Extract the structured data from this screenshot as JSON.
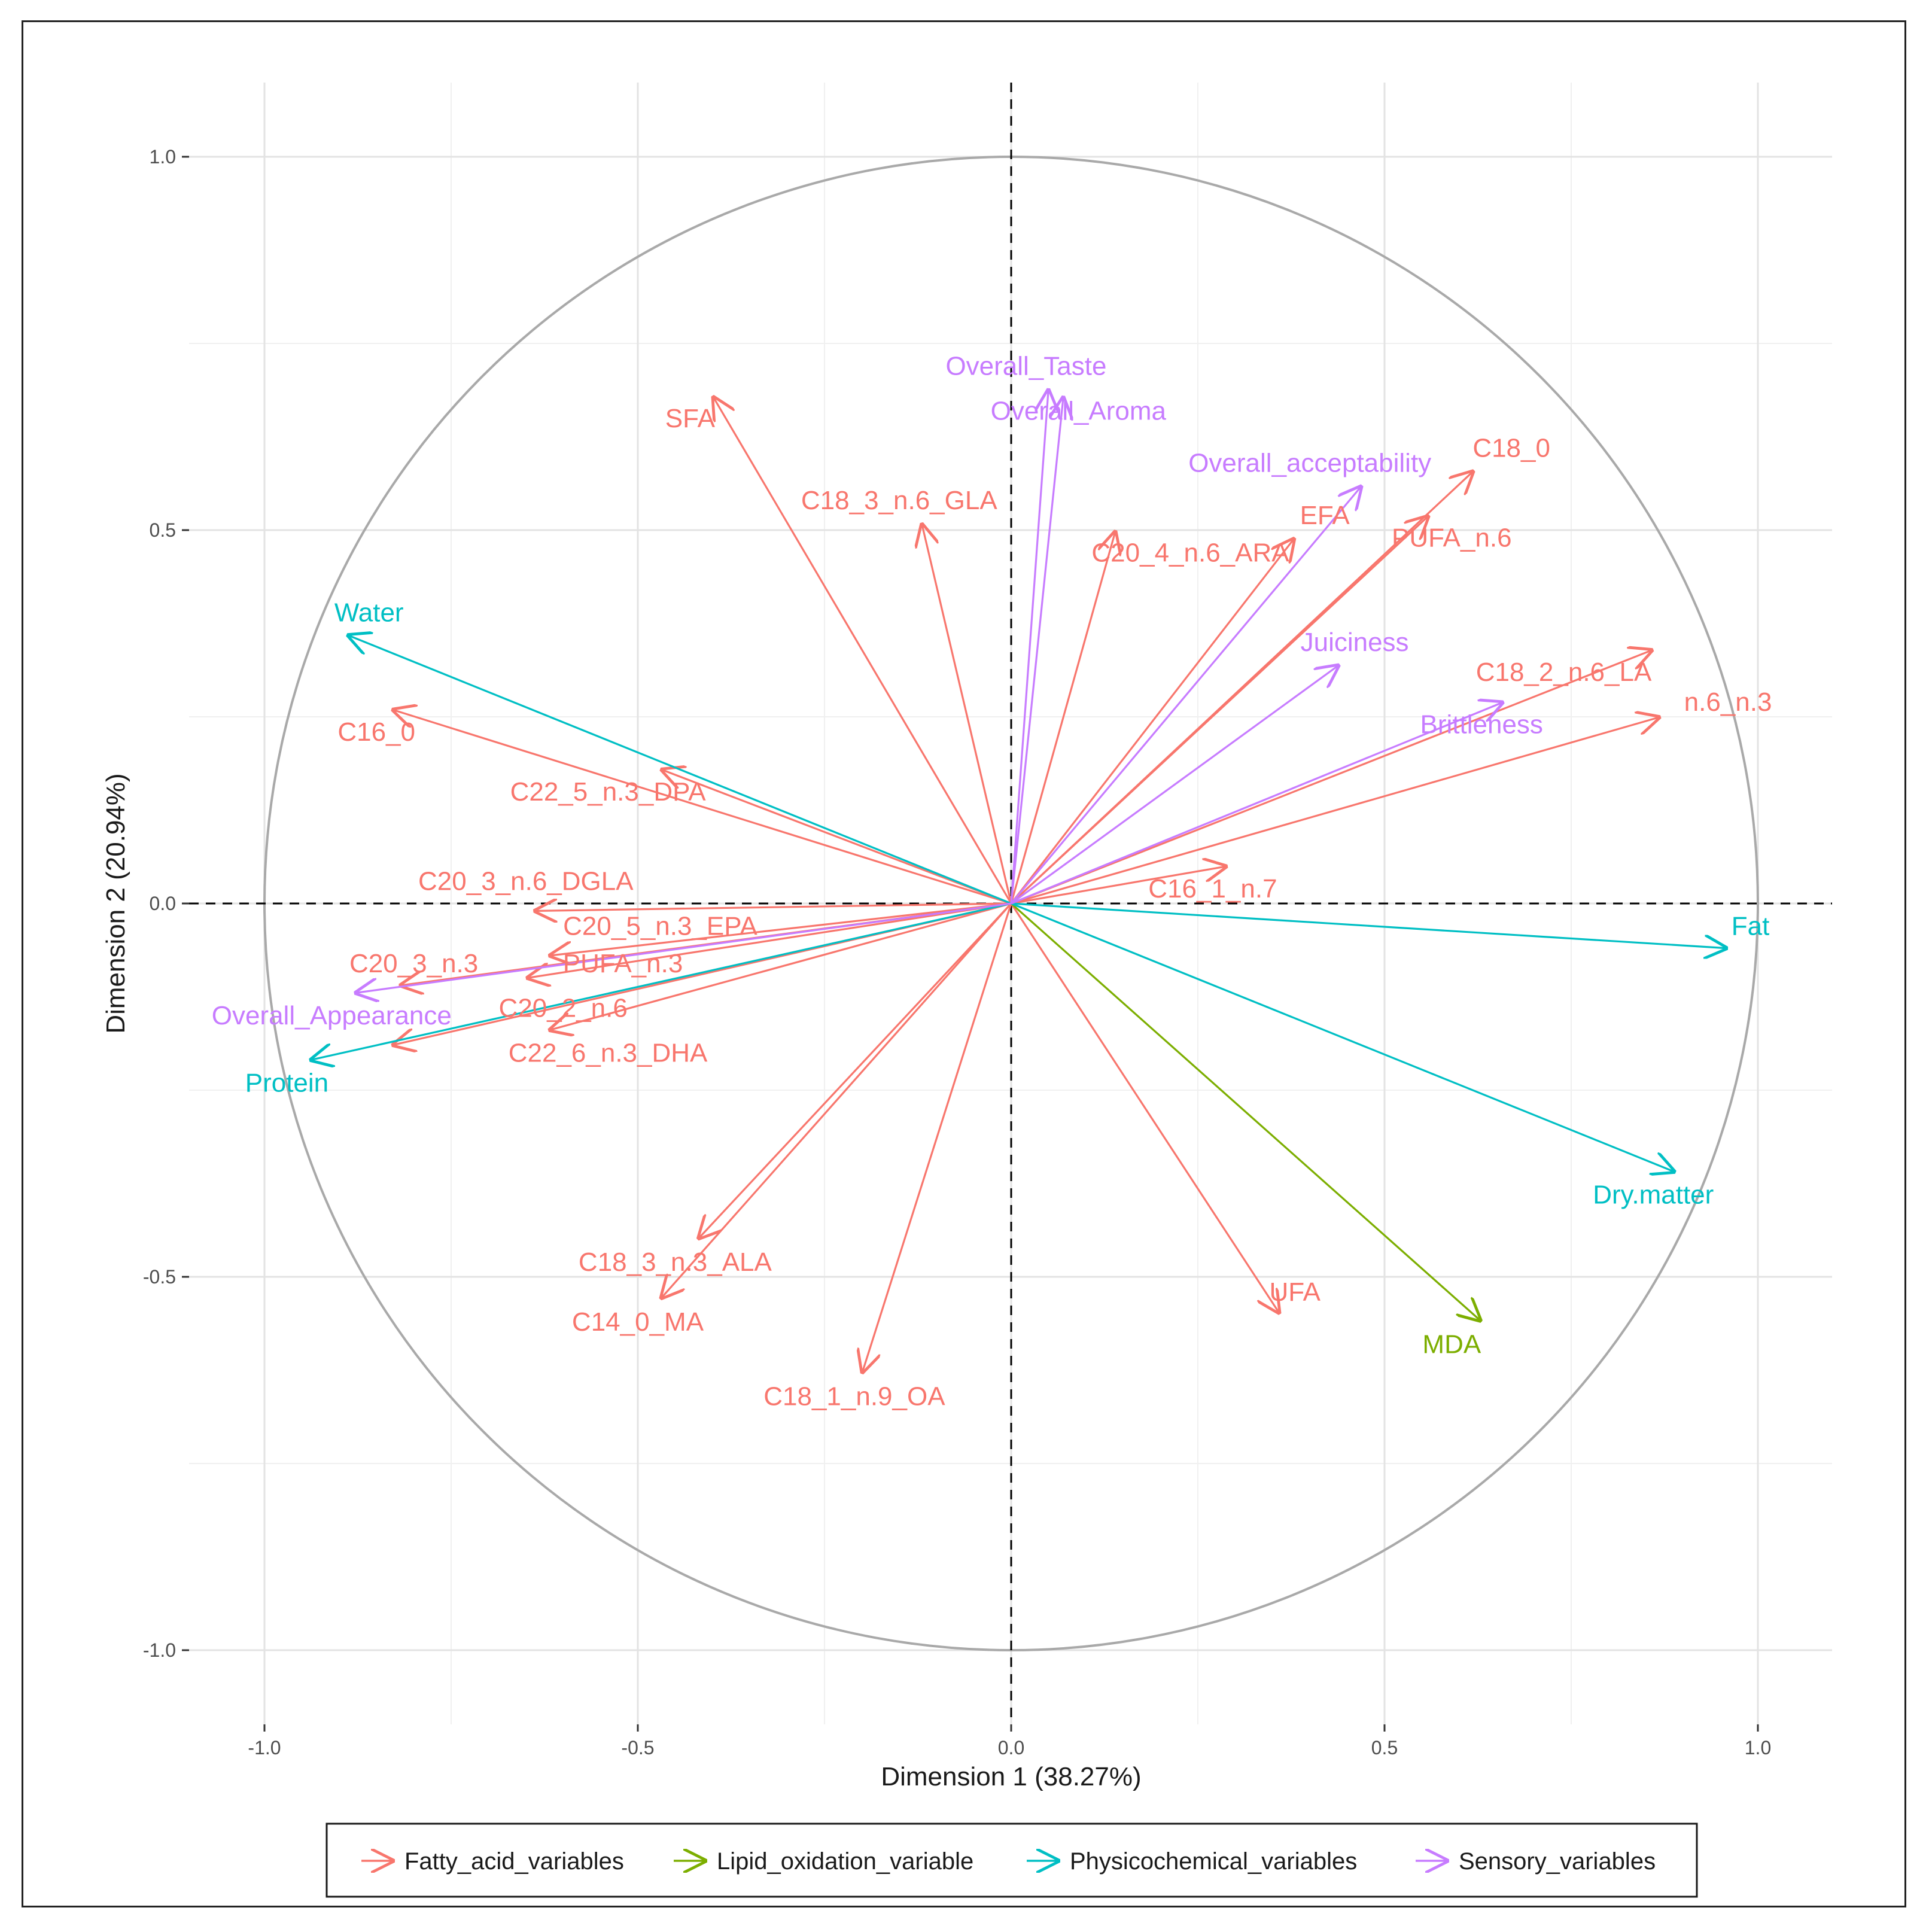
{
  "chart_data": {
    "type": "biplot",
    "title": "",
    "xlabel": "Dimension 1 (38.27%)",
    "ylabel": "Dimension 2 (20.94%)",
    "xlim": [
      -1.1,
      1.1
    ],
    "ylim": [
      -1.1,
      1.1
    ],
    "xticks": [
      -1.0,
      -0.5,
      0.0,
      0.5,
      1.0
    ],
    "yticks": [
      -1.0,
      -0.5,
      0.0,
      0.5,
      1.0
    ],
    "xtick_labels": [
      "-1.0",
      "-0.5",
      "0.0",
      "0.5",
      "1.0"
    ],
    "ytick_labels": [
      "-1.0",
      "-0.5",
      "0.0",
      "0.5",
      "1.0"
    ],
    "grid": true,
    "unit_circle": true,
    "reference_lines": "dashed lines at x=0 and y=0",
    "legend_position": "bottom",
    "groups": [
      {
        "name": "Fatty_acid_variables",
        "color": "#F8766D"
      },
      {
        "name": "Lipid_oxidation_variable",
        "color": "#7CAE00"
      },
      {
        "name": "Physicochemical_variables",
        "color": "#00BFC4"
      },
      {
        "name": "Sensory_variables",
        "color": "#C77CFF"
      }
    ],
    "variables": [
      {
        "name": "SFA",
        "group": "Fatty_acid_variables",
        "x": -0.4,
        "y": 0.68,
        "lx": -0.43,
        "ly": 0.65
      },
      {
        "name": "C18_3_n.6_GLA",
        "group": "Fatty_acid_variables",
        "x": -0.12,
        "y": 0.51,
        "lx": -0.15,
        "ly": 0.54
      },
      {
        "name": "C20_4_n.6_ARA",
        "group": "Fatty_acid_variables",
        "x": 0.14,
        "y": 0.5,
        "lx": 0.24,
        "ly": 0.47
      },
      {
        "name": "EFA",
        "group": "Fatty_acid_variables",
        "x": 0.38,
        "y": 0.49,
        "lx": 0.42,
        "ly": 0.52
      },
      {
        "name": "C18_0",
        "group": "Fatty_acid_variables",
        "x": 0.62,
        "y": 0.58,
        "lx": 0.67,
        "ly": 0.61
      },
      {
        "name": "PUFA_n.6",
        "group": "Fatty_acid_variables",
        "x": 0.56,
        "y": 0.52,
        "lx": 0.59,
        "ly": 0.49
      },
      {
        "name": "C18_2_n.6_LA",
        "group": "Fatty_acid_variables",
        "x": 0.86,
        "y": 0.34,
        "lx": 0.74,
        "ly": 0.31
      },
      {
        "name": "n.6_n.3",
        "group": "Fatty_acid_variables",
        "x": 0.87,
        "y": 0.25,
        "lx": 0.96,
        "ly": 0.27
      },
      {
        "name": "C16_1_n.7",
        "group": "Fatty_acid_variables",
        "x": 0.29,
        "y": 0.05,
        "lx": 0.27,
        "ly": 0.02
      },
      {
        "name": "UFA",
        "group": "Fatty_acid_variables",
        "x": 0.36,
        "y": -0.55,
        "lx": 0.38,
        "ly": -0.52
      },
      {
        "name": "C18_1_n.9_OA",
        "group": "Fatty_acid_variables",
        "x": -0.2,
        "y": -0.63,
        "lx": -0.21,
        "ly": -0.66
      },
      {
        "name": "C14_0_MA",
        "group": "Fatty_acid_variables",
        "x": -0.47,
        "y": -0.53,
        "lx": -0.5,
        "ly": -0.56
      },
      {
        "name": "C18_3_n.3_ALA",
        "group": "Fatty_acid_variables",
        "x": -0.42,
        "y": -0.45,
        "lx": -0.45,
        "ly": -0.48
      },
      {
        "name": "C16_0",
        "group": "Fatty_acid_variables",
        "x": -0.83,
        "y": 0.26,
        "lx": -0.85,
        "ly": 0.23
      },
      {
        "name": "C22_5_n.3_DPA",
        "group": "Fatty_acid_variables",
        "x": -0.47,
        "y": 0.18,
        "lx": -0.54,
        "ly": 0.15
      },
      {
        "name": "C20_3_n.6_DGLA",
        "group": "Fatty_acid_variables",
        "x": -0.64,
        "y": -0.01,
        "lx": -0.65,
        "ly": 0.03
      },
      {
        "name": "C20_5_n.3_EPA",
        "group": "Fatty_acid_variables",
        "x": -0.62,
        "y": -0.07,
        "lx": -0.47,
        "ly": -0.03
      },
      {
        "name": "PUFA_n.3",
        "group": "Fatty_acid_variables",
        "x": -0.65,
        "y": -0.1,
        "lx": -0.52,
        "ly": -0.08
      },
      {
        "name": "C20_3_n.3",
        "group": "Fatty_acid_variables",
        "x": -0.82,
        "y": -0.11,
        "lx": -0.8,
        "ly": -0.08
      },
      {
        "name": "C20_2_n.6",
        "group": "Fatty_acid_variables",
        "x": -0.62,
        "y": -0.17,
        "lx": -0.6,
        "ly": -0.14
      },
      {
        "name": "C22_6_n.3_DHA",
        "group": "Fatty_acid_variables",
        "x": -0.83,
        "y": -0.19,
        "lx": -0.54,
        "ly": -0.2
      },
      {
        "name": "MDA",
        "group": "Lipid_oxidation_variable",
        "x": 0.63,
        "y": -0.56,
        "lx": 0.59,
        "ly": -0.59
      },
      {
        "name": "Water",
        "group": "Physicochemical_variables",
        "x": -0.89,
        "y": 0.36,
        "lx": -0.86,
        "ly": 0.39
      },
      {
        "name": "Protein",
        "group": "Physicochemical_variables",
        "x": -0.94,
        "y": -0.21,
        "lx": -0.97,
        "ly": -0.24
      },
      {
        "name": "Fat",
        "group": "Physicochemical_variables",
        "x": 0.96,
        "y": -0.06,
        "lx": 0.99,
        "ly": -0.03
      },
      {
        "name": "Dry.matter",
        "group": "Physicochemical_variables",
        "x": 0.89,
        "y": -0.36,
        "lx": 0.86,
        "ly": -0.39
      },
      {
        "name": "Overall_Taste",
        "group": "Sensory_variables",
        "x": 0.05,
        "y": 0.69,
        "lx": 0.02,
        "ly": 0.72
      },
      {
        "name": "Overall_Aroma",
        "group": "Sensory_variables",
        "x": 0.07,
        "y": 0.68,
        "lx": 0.09,
        "ly": 0.66
      },
      {
        "name": "Overall_acceptability",
        "group": "Sensory_variables",
        "x": 0.47,
        "y": 0.56,
        "lx": 0.4,
        "ly": 0.59
      },
      {
        "name": "Juiciness",
        "group": "Sensory_variables",
        "x": 0.44,
        "y": 0.32,
        "lx": 0.46,
        "ly": 0.35
      },
      {
        "name": "Brittleness",
        "group": "Sensory_variables",
        "x": 0.66,
        "y": 0.27,
        "lx": 0.63,
        "ly": 0.24
      },
      {
        "name": "Overall_Appearance",
        "group": "Sensory_variables",
        "x": -0.88,
        "y": -0.12,
        "lx": -0.91,
        "ly": -0.15
      }
    ]
  }
}
